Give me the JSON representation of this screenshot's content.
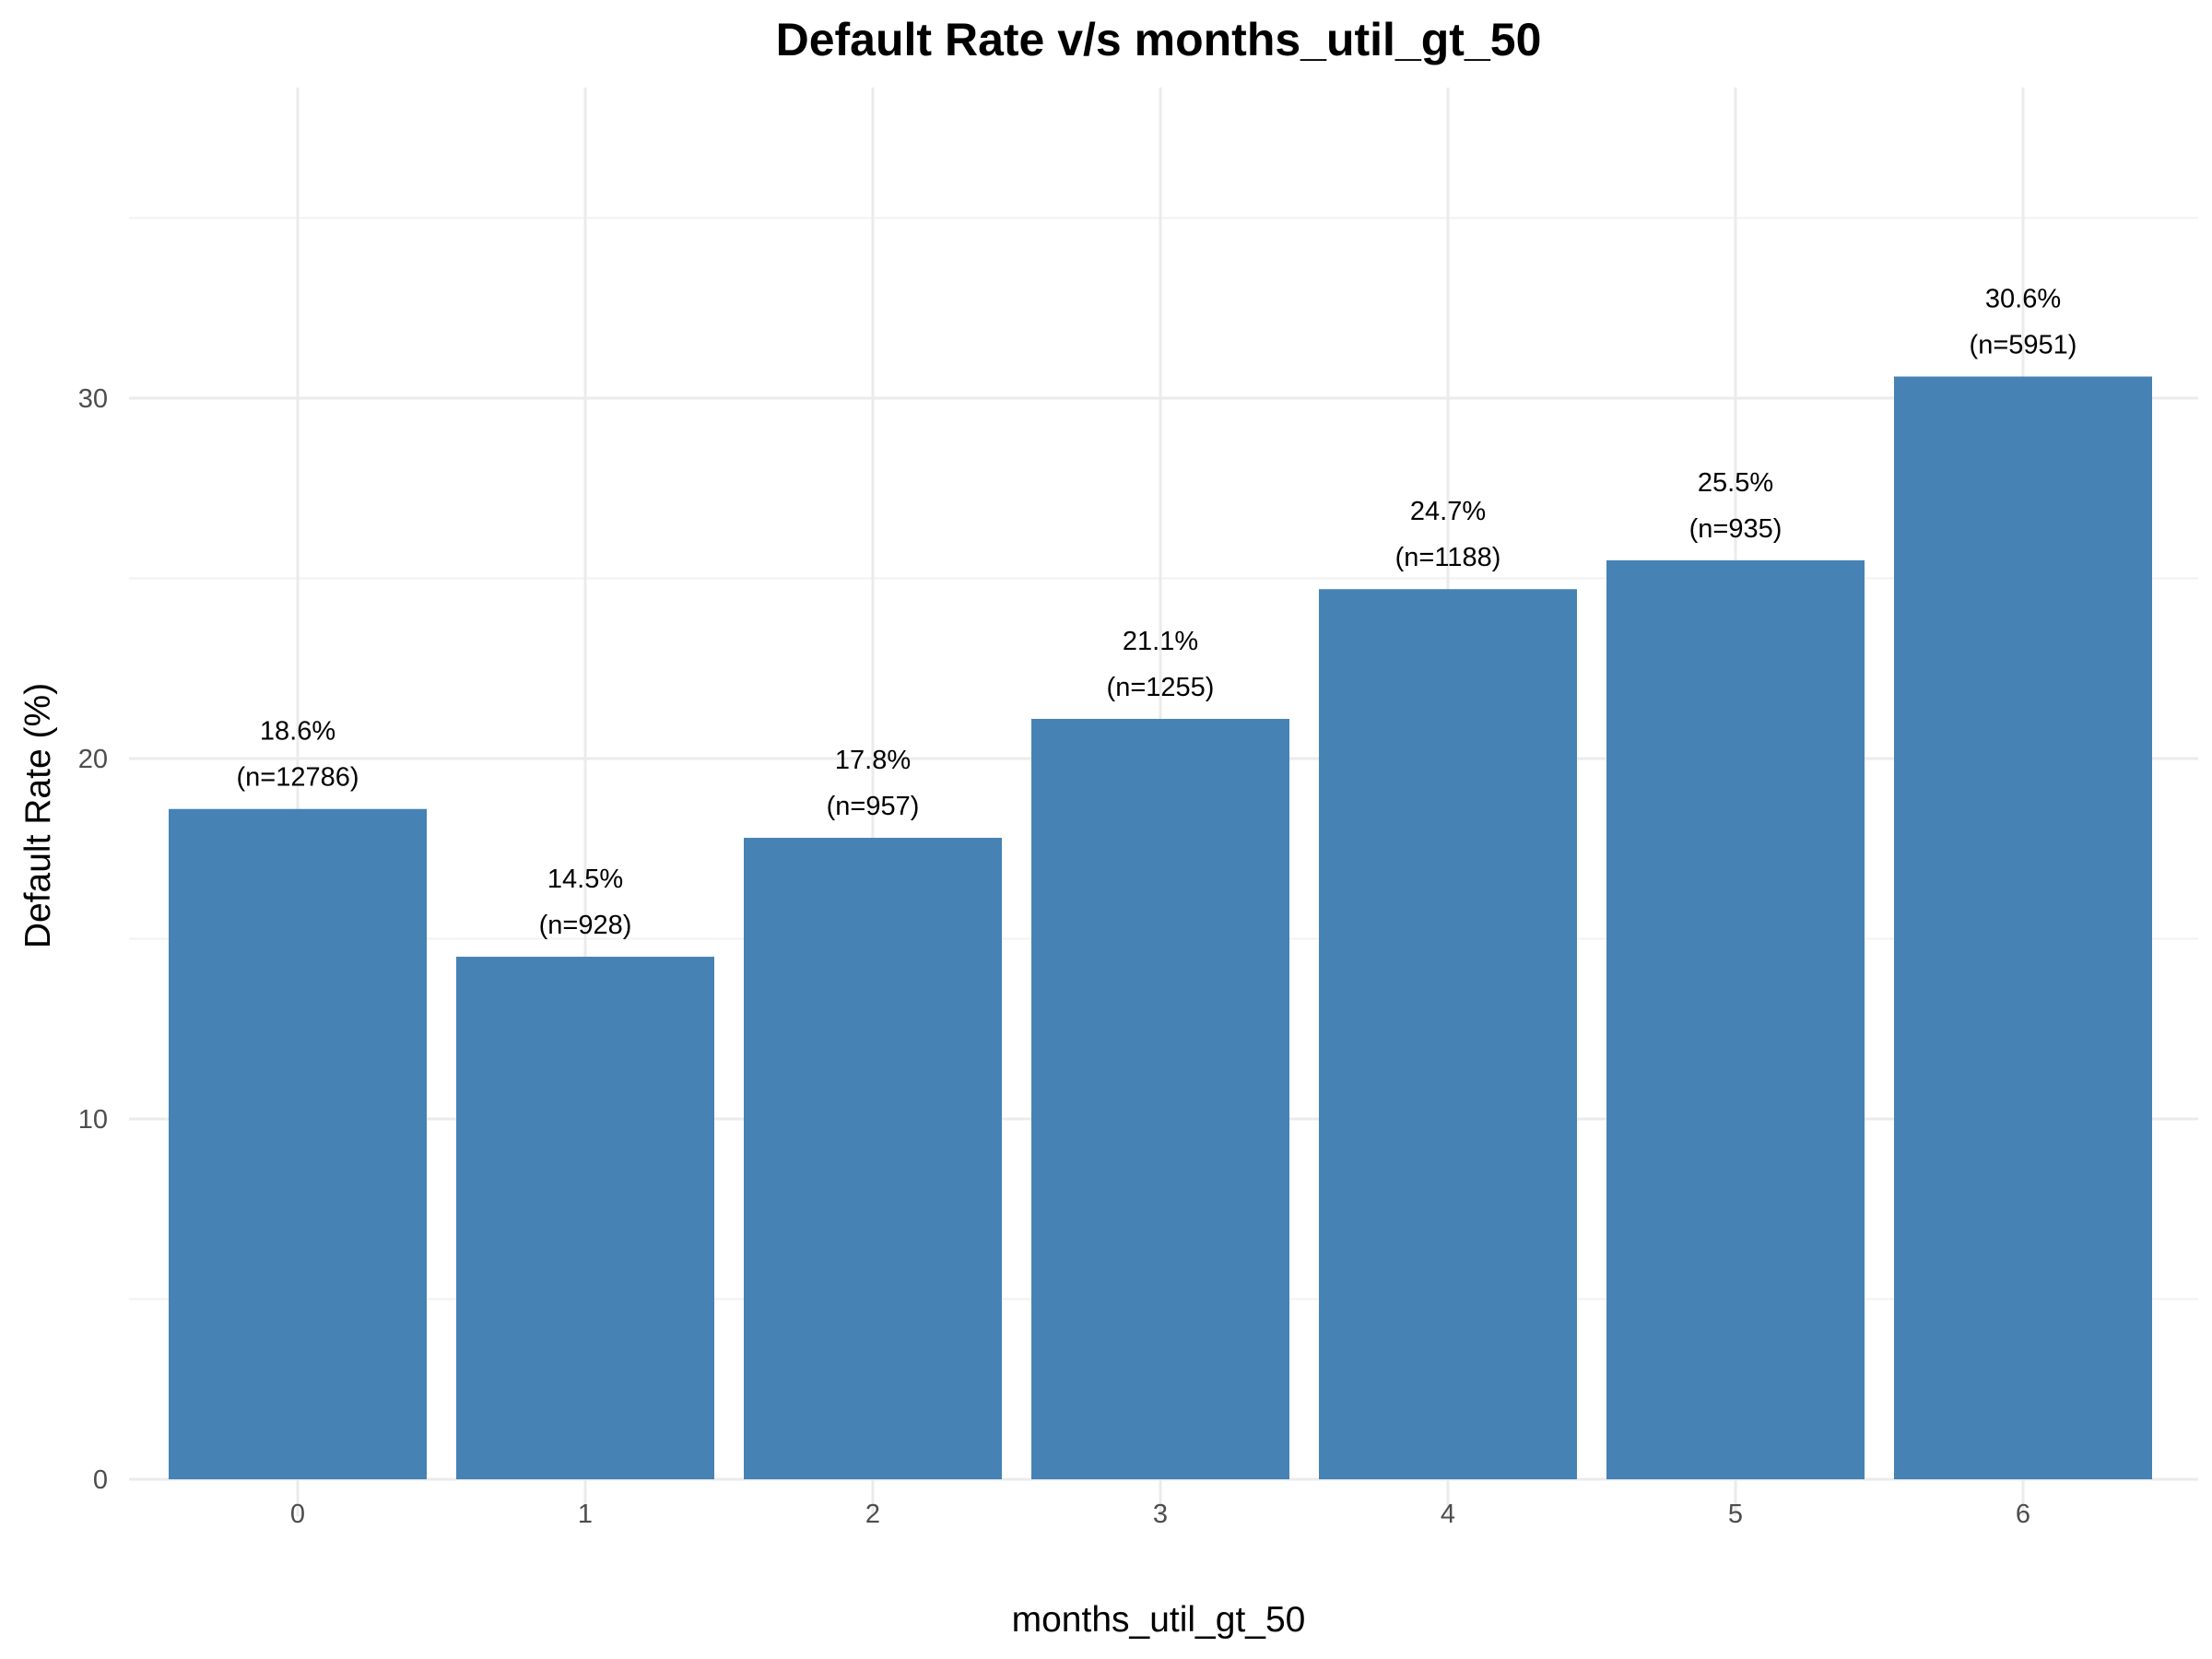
{
  "chart_data": {
    "type": "bar",
    "title": "Default Rate v/s months_util_gt_50",
    "xlabel": "months_util_gt_50",
    "ylabel": "Default Rate (%)",
    "categories": [
      "0",
      "1",
      "2",
      "3",
      "4",
      "5",
      "6"
    ],
    "values": [
      18.6,
      14.5,
      17.8,
      21.1,
      24.7,
      25.5,
      30.6
    ],
    "value_labels": [
      "18.6%",
      "14.5%",
      "17.8%",
      "21.1%",
      "24.7%",
      "25.5%",
      "30.6%"
    ],
    "count_labels": [
      "(n=12786)",
      "(n=928)",
      "(n=957)",
      "(n=1255)",
      "(n=1188)",
      "(n=935)",
      "(n=5951)"
    ],
    "y_ticks": [
      0,
      10,
      20,
      30
    ],
    "ylim": [
      0,
      35.6
    ],
    "grid": true,
    "legend": "none",
    "bar_color": "#4682b4"
  }
}
